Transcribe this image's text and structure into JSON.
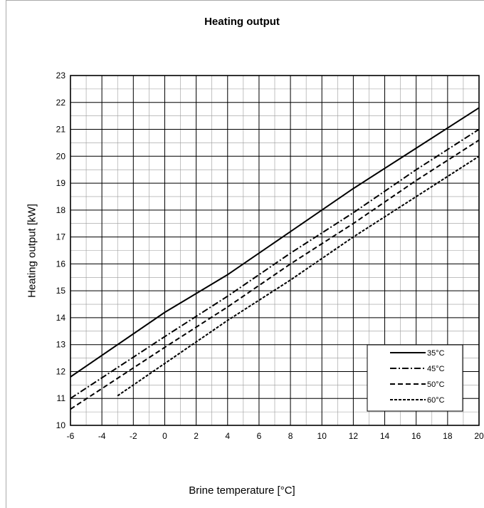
{
  "chart_data": {
    "type": "line",
    "title": "Heating output",
    "xlabel": "Brine temperature [°C]",
    "ylabel": "Heating output [kW]",
    "xlim": [
      -6,
      20
    ],
    "ylim": [
      10,
      23
    ],
    "xticks": [
      -6,
      -4,
      -2,
      0,
      2,
      4,
      6,
      8,
      10,
      12,
      14,
      16,
      18,
      20
    ],
    "yticks": [
      10,
      11,
      12,
      13,
      14,
      15,
      16,
      17,
      18,
      19,
      20,
      21,
      22,
      23
    ],
    "grid": true,
    "legend_position": "bottom-right",
    "series": [
      {
        "name": "35°C",
        "style": "solid",
        "x": [
          -6,
          0,
          4,
          8,
          12,
          16,
          20
        ],
        "y": [
          11.8,
          14.2,
          15.6,
          17.2,
          18.8,
          20.3,
          21.8
        ]
      },
      {
        "name": "45°C",
        "style": "dashdot",
        "x": [
          -6,
          0,
          4,
          8,
          12,
          16,
          20
        ],
        "y": [
          11.0,
          13.3,
          14.8,
          16.4,
          17.9,
          19.5,
          21.0
        ]
      },
      {
        "name": "50°C",
        "style": "dashed",
        "x": [
          -6,
          0,
          4,
          8,
          12,
          16,
          20
        ],
        "y": [
          10.6,
          12.9,
          14.4,
          16.0,
          17.5,
          19.1,
          20.6
        ]
      },
      {
        "name": "60°C",
        "style": "dotted",
        "x": [
          -3,
          0,
          4,
          8,
          12,
          16,
          20
        ],
        "y": [
          11.1,
          12.3,
          13.9,
          15.4,
          17.0,
          18.5,
          20.0
        ]
      }
    ]
  }
}
